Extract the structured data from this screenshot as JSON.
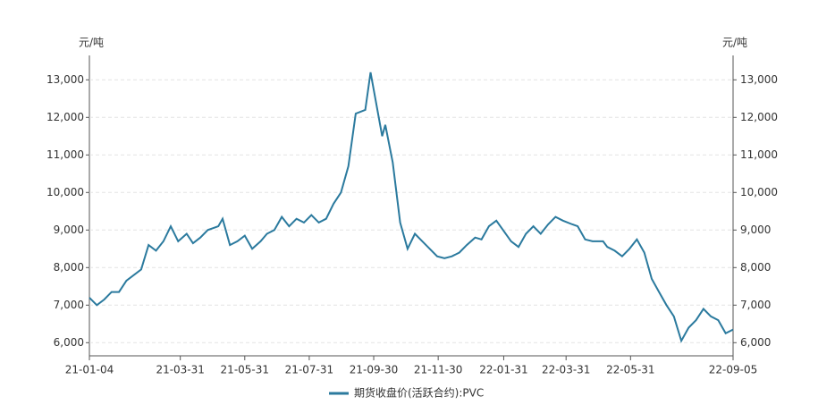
{
  "chart_data": {
    "type": "line",
    "y_label": "元/吨",
    "y2_label": "元/吨",
    "x": [
      "21-01-04",
      "21-01-11",
      "21-01-18",
      "21-01-25",
      "21-02-01",
      "21-02-08",
      "21-02-22",
      "21-03-01",
      "21-03-08",
      "21-03-15",
      "21-03-22",
      "21-03-29",
      "21-04-06",
      "21-04-12",
      "21-04-19",
      "21-04-26",
      "21-05-06",
      "21-05-10",
      "21-05-17",
      "21-05-24",
      "21-05-31",
      "21-06-07",
      "21-06-15",
      "21-06-21",
      "21-06-28",
      "21-07-05",
      "21-07-12",
      "21-07-19",
      "21-07-26",
      "21-08-02",
      "21-08-09",
      "21-08-16",
      "21-08-23",
      "21-08-30",
      "21-09-06",
      "21-09-13",
      "21-09-22",
      "21-09-27",
      "21-10-08",
      "21-10-11",
      "21-10-18",
      "21-10-25",
      "21-11-01",
      "21-11-08",
      "21-11-15",
      "21-11-22",
      "21-11-29",
      "21-12-06",
      "21-12-13",
      "21-12-20",
      "21-12-27",
      "22-01-04",
      "22-01-10",
      "22-01-17",
      "22-01-24",
      "22-02-07",
      "22-02-14",
      "22-02-21",
      "22-02-28",
      "22-03-07",
      "22-03-14",
      "22-03-21",
      "22-03-28",
      "22-04-06",
      "22-04-11",
      "22-04-18",
      "22-04-25",
      "22-05-05",
      "22-05-09",
      "22-05-16",
      "22-05-23",
      "22-05-30",
      "22-06-06",
      "22-06-13",
      "22-06-20",
      "22-06-27",
      "22-07-04",
      "22-07-11",
      "22-07-18",
      "22-07-25",
      "22-08-01",
      "22-08-08",
      "22-08-15",
      "22-08-22",
      "22-08-29",
      "22-09-05"
    ],
    "series": [
      {
        "name": "期货收盘价(活跃合约):PVC",
        "color": "#2b7a9e",
        "values": [
          7200,
          7000,
          7150,
          7350,
          7350,
          7650,
          7950,
          8600,
          8450,
          8700,
          9100,
          8700,
          8900,
          8650,
          8800,
          9000,
          9100,
          9300,
          8600,
          8700,
          8850,
          8500,
          8700,
          8900,
          9000,
          9350,
          9100,
          9300,
          9200,
          9400,
          9200,
          9300,
          9700,
          10000,
          10700,
          12100,
          12200,
          13200,
          11500,
          11800,
          10800,
          9200,
          8500,
          8900,
          8700,
          8500,
          8300,
          8250,
          8300,
          8400,
          8600,
          8800,
          8750,
          9100,
          9250,
          8700,
          8550,
          8900,
          9100,
          8900,
          9150,
          9350,
          9250,
          9150,
          9100,
          8750,
          8700,
          8700,
          8550,
          8450,
          8300,
          8500,
          8750,
          8400,
          7700,
          7350,
          7000,
          6700,
          6050,
          6400,
          6600,
          6900,
          6700,
          6600,
          6250,
          6350
        ]
      }
    ],
    "xticks": [
      "21-01-04",
      "21-03-31",
      "21-05-31",
      "21-07-31",
      "21-09-30",
      "21-11-30",
      "22-01-31",
      "22-03-31",
      "22-05-31",
      "22-09-05"
    ],
    "ylim": [
      5650,
      13650
    ],
    "yticks": [
      {
        "value": 6000,
        "label": "6,000"
      },
      {
        "value": 7000,
        "label": "7,000"
      },
      {
        "value": 8000,
        "label": "8,000"
      },
      {
        "value": 9000,
        "label": "9,000"
      },
      {
        "value": 10000,
        "label": "10,000"
      },
      {
        "value": 11000,
        "label": "11,000"
      },
      {
        "value": 12000,
        "label": "12,000"
      },
      {
        "value": 13000,
        "label": "13,000"
      }
    ],
    "y2lim": [
      5650,
      13650
    ],
    "y2ticks": [
      {
        "value": 6000,
        "label": "6,000"
      },
      {
        "value": 7000,
        "label": "7,000"
      },
      {
        "value": 8000,
        "label": "8,000"
      },
      {
        "value": 9000,
        "label": "9,000"
      },
      {
        "value": 10000,
        "label": "10,000"
      },
      {
        "value": 11000,
        "label": "11,000"
      },
      {
        "value": 12000,
        "label": "12,000"
      },
      {
        "value": 13000,
        "label": "13,000"
      }
    ],
    "grid": true,
    "legend": "bottom"
  }
}
